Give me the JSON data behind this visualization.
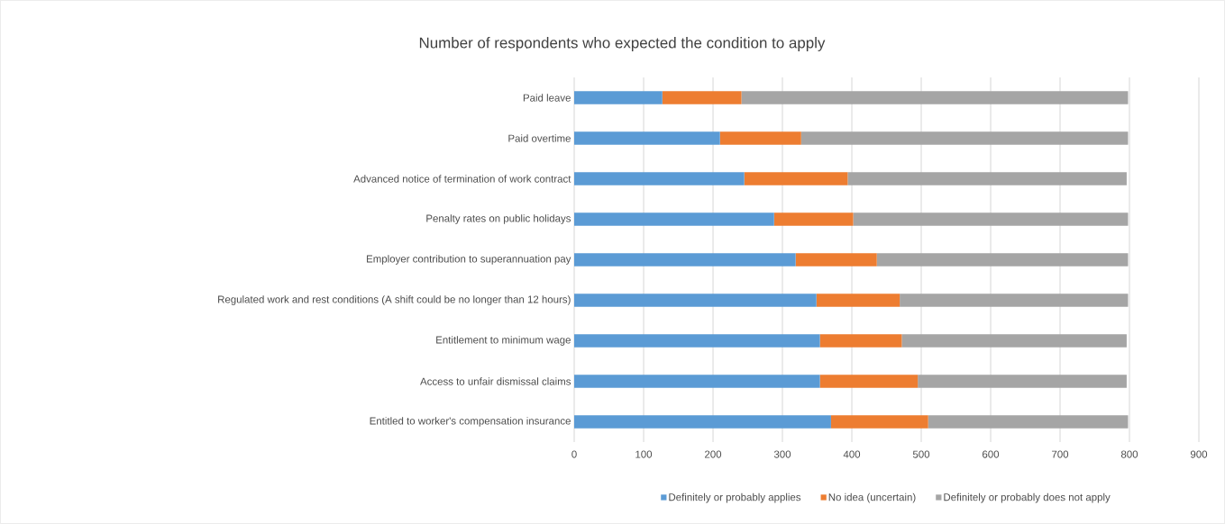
{
  "chart_data": {
    "type": "bar",
    "orientation": "horizontal",
    "stacked": true,
    "title": "Number of respondents who expected the condition to apply",
    "categories": [
      "Paid leave",
      "Paid overtime",
      "Advanced notice of termination of work contract",
      "Penalty rates on public holidays",
      "Employer contribution to superannuation pay",
      "Regulated work and rest conditions (A shift could be no longer than 12 hours)",
      "Entitlement to minimum wage",
      "Access to unfair dismissal claims",
      "Entitled to worker's compensation insurance"
    ],
    "series": [
      {
        "name": "Definitely or probably applies",
        "color": "#5b9bd5",
        "values": [
          127,
          210,
          245,
          288,
          319,
          349,
          354,
          354,
          370
        ]
      },
      {
        "name": "No idea (uncertain)",
        "color": "#ed7d31",
        "values": [
          114,
          117,
          149,
          114,
          117,
          120,
          118,
          141,
          140
        ]
      },
      {
        "name": "Definitely or probably does not apply",
        "color": "#a5a5a5",
        "values": [
          557,
          471,
          402,
          396,
          362,
          329,
          324,
          301,
          288
        ]
      }
    ],
    "xlim": [
      0,
      900
    ],
    "xticks": [
      0,
      100,
      200,
      300,
      400,
      500,
      600,
      700,
      800,
      900
    ],
    "grid": "x",
    "legend": "bottom"
  }
}
